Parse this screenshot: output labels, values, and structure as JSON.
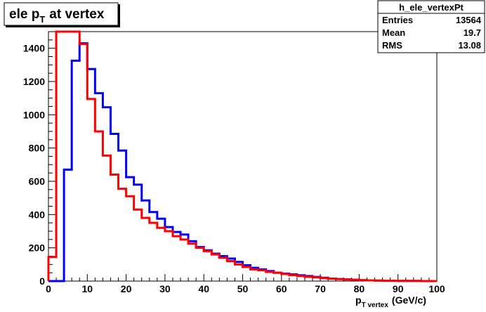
{
  "chart_data": {
    "type": "bar",
    "title_main": "ele p",
    "title_sub": "T",
    "title_tail": "at vertex",
    "xlabel_main": "p",
    "xlabel_sub": "T vertex",
    "xlabel_tail": "(GeV/c)",
    "xlim": [
      0,
      100
    ],
    "ylim": [
      0,
      1500
    ],
    "xticks": [
      0,
      10,
      20,
      30,
      40,
      50,
      60,
      70,
      80,
      90,
      100
    ],
    "yticks": [
      0,
      200,
      400,
      600,
      800,
      1000,
      1200,
      1400
    ],
    "bin_width": 2,
    "stats": {
      "name": "h_ele_vertexPt",
      "rows": [
        {
          "label": "Entries",
          "value": "13564"
        },
        {
          "label": "Mean",
          "value": "19.7"
        },
        {
          "label": "RMS",
          "value": "13.08"
        }
      ]
    },
    "series": [
      {
        "color": "#0000ff",
        "values": [
          0,
          0,
          670,
          1325,
          1430,
          1275,
          1130,
          1045,
          885,
          785,
          625,
          580,
          485,
          415,
          375,
          325,
          295,
          280,
          240,
          205,
          185,
          165,
          150,
          135,
          115,
          95,
          80,
          70,
          60,
          50,
          45,
          40,
          35,
          30,
          25,
          20,
          15,
          12,
          10,
          8,
          5,
          4,
          3,
          2,
          2,
          1,
          1,
          1,
          0,
          0
        ]
      },
      {
        "color": "#ff0000",
        "values": [
          145,
          1500,
          1500,
          1500,
          1425,
          1095,
          900,
          755,
          640,
          555,
          510,
          430,
          380,
          350,
          320,
          300,
          270,
          250,
          225,
          200,
          180,
          160,
          140,
          120,
          100,
          85,
          70,
          65,
          55,
          50,
          42,
          36,
          30,
          26,
          22,
          18,
          14,
          12,
          10,
          8,
          6,
          4,
          3,
          2,
          2,
          1,
          1,
          1,
          0,
          0
        ]
      }
    ]
  }
}
